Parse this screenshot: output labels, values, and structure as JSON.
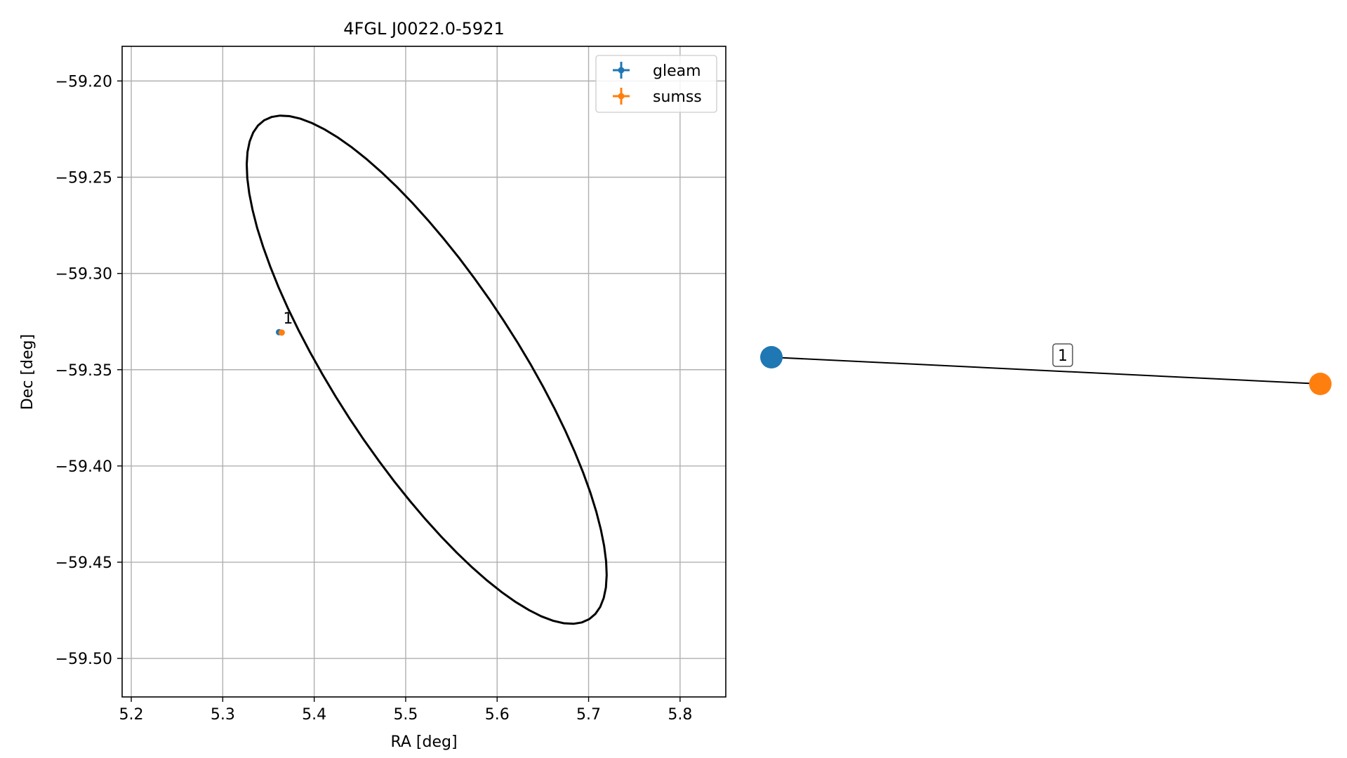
{
  "chart_data": [
    {
      "type": "scatter",
      "title": "4FGL J0022.0-5921",
      "xlabel": "RA [deg]",
      "ylabel": "Dec [deg]",
      "xlim": [
        5.19,
        5.85
      ],
      "ylim": [
        -59.52,
        -59.182
      ],
      "xticks": [
        5.2,
        5.3,
        5.4,
        5.5,
        5.6,
        5.7,
        5.8
      ],
      "xtick_labels": [
        "5.2",
        "5.3",
        "5.4",
        "5.5",
        "5.6",
        "5.7",
        "5.8"
      ],
      "yticks": [
        -59.2,
        -59.25,
        -59.3,
        -59.35,
        -59.4,
        -59.45,
        -59.5
      ],
      "ytick_labels": [
        "−59.20",
        "−59.25",
        "−59.30",
        "−59.35",
        "−59.40",
        "−59.45",
        "−59.50"
      ],
      "grid": true,
      "legend_position": "top-right",
      "series": [
        {
          "name": "gleam",
          "color": "#1f77b4",
          "points": [
            {
              "x": 5.3615,
              "y": -59.3305
            }
          ]
        },
        {
          "name": "sumss",
          "color": "#ff7f0e",
          "points": [
            {
              "x": 5.3645,
              "y": -59.3307
            }
          ]
        }
      ],
      "ellipse": {
        "color": "#000000",
        "center": {
          "x": 5.523,
          "y": -59.35
        },
        "semi_major": 0.227,
        "semi_minor": 0.068,
        "angle_deg": -31.5
      },
      "annotations": [
        {
          "text": "1",
          "x": 5.366,
          "y": -59.326
        }
      ]
    },
    {
      "type": "network",
      "nodes": [
        {
          "id": "gleam",
          "color": "#1f77b4"
        },
        {
          "id": "sumss",
          "color": "#ff7f0e"
        }
      ],
      "edges": [
        {
          "source": "gleam",
          "target": "sumss",
          "label": "1"
        }
      ]
    }
  ]
}
